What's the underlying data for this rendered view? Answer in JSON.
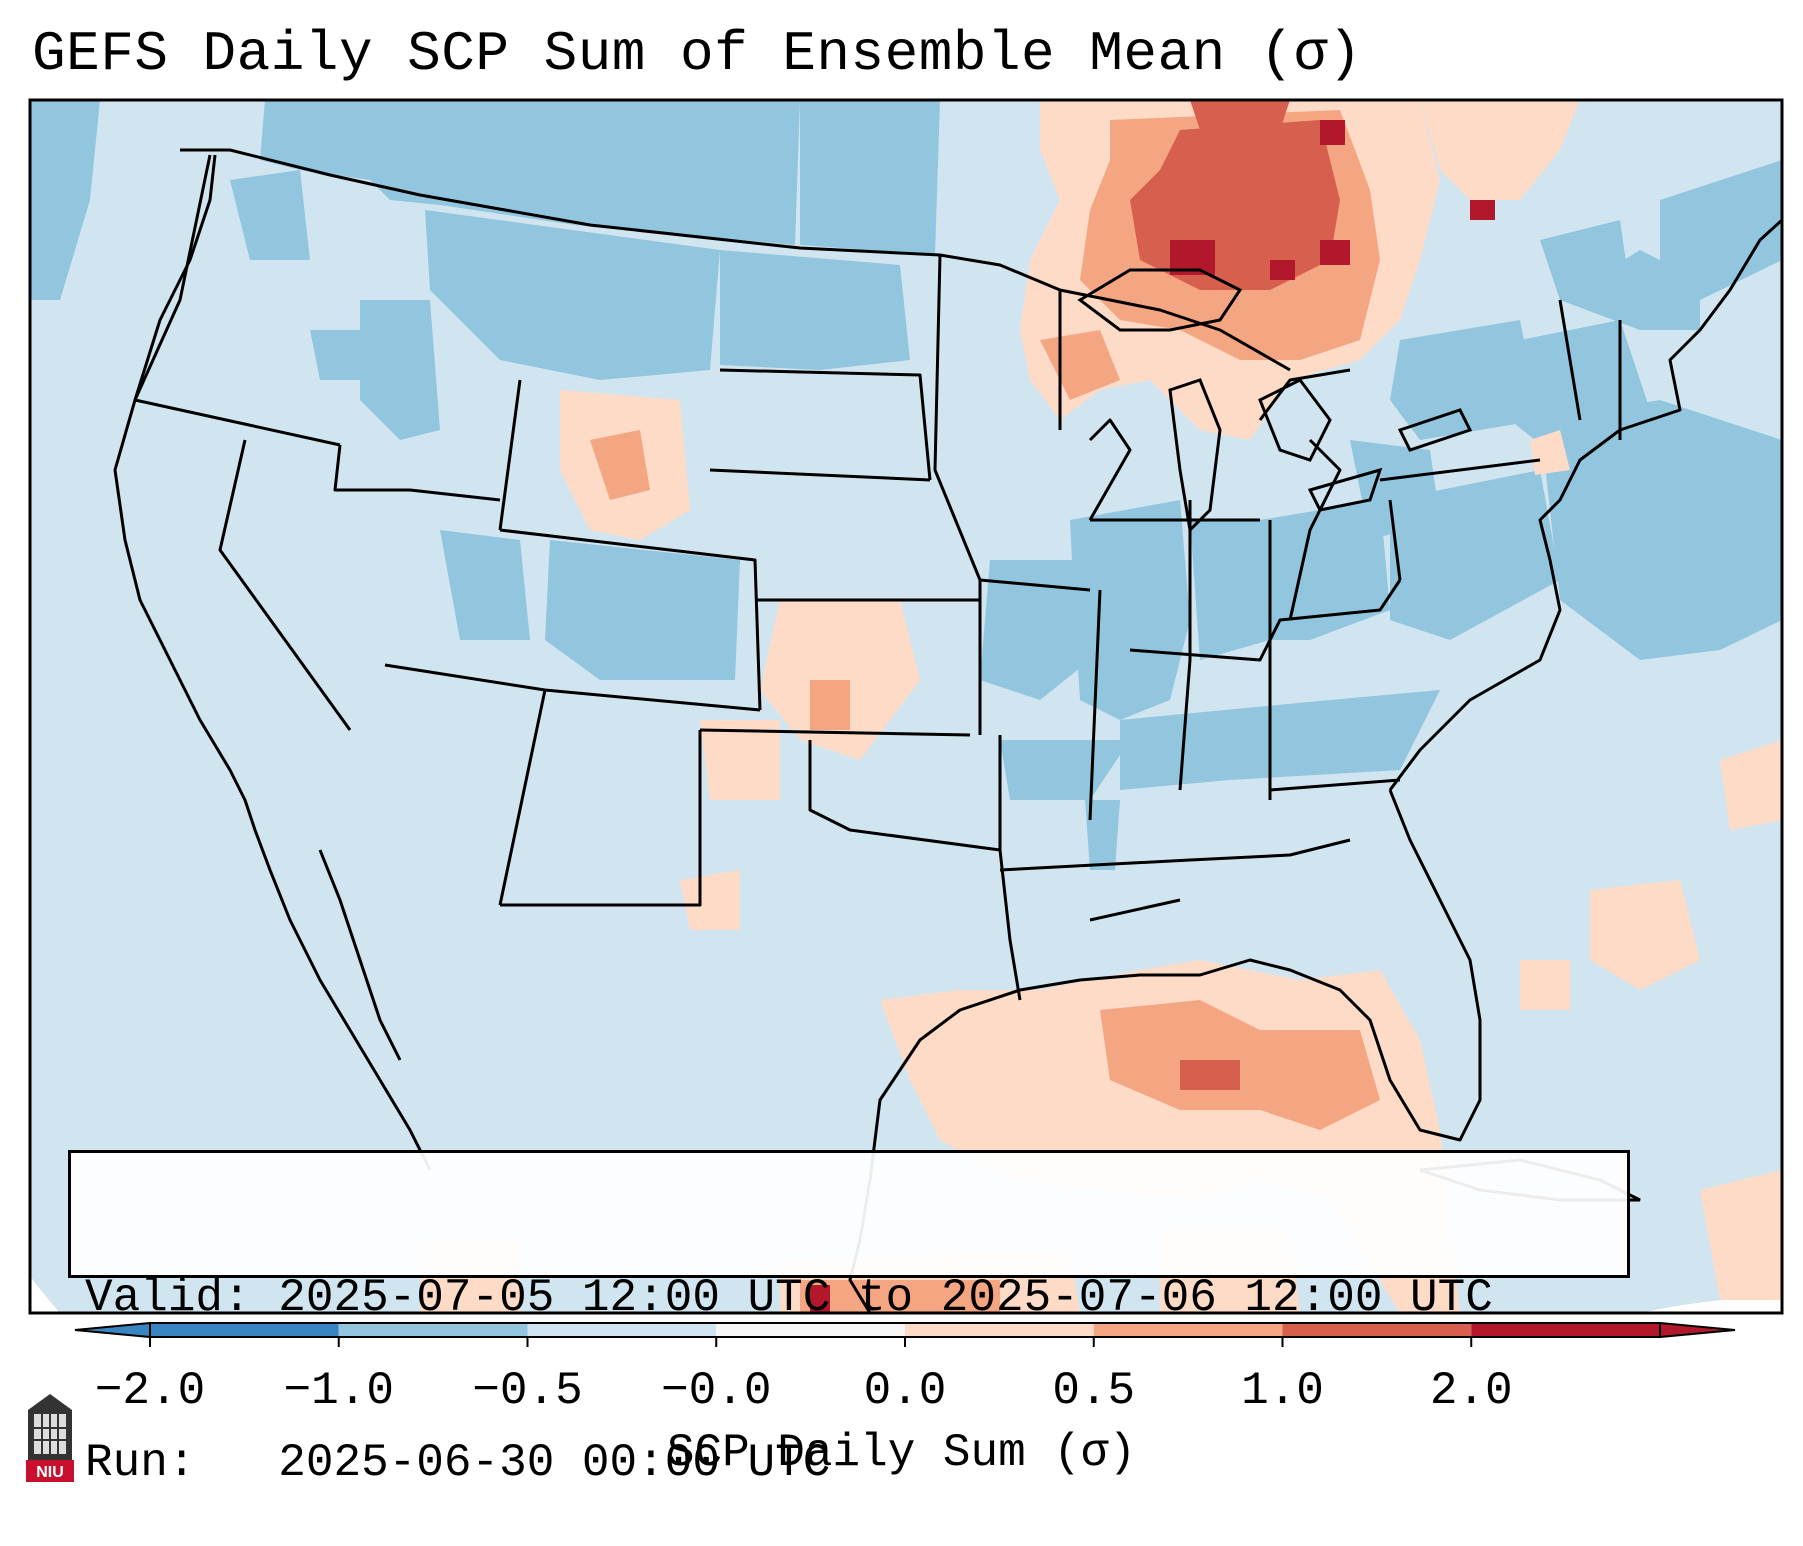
{
  "title": "GEFS Daily SCP Sum of Ensemble Mean (σ)",
  "info": {
    "valid_label": "Valid:",
    "valid_value": "2025-07-05 12:00 UTC to 2025-07-06 12:00 UTC",
    "run_label": "Run:",
    "run_value": "2025-06-30 00:00 UTC"
  },
  "colorbar": {
    "label": "SCP Daily Sum (σ)",
    "ticks": [
      "−2.0",
      "−1.0",
      "−0.5",
      "−0.0",
      "0.0",
      "0.5",
      "1.0",
      "2.0"
    ],
    "colors": [
      "#3a84c1",
      "#92c5de",
      "#d1e5f0",
      "#f7f7f7",
      "#fddbc7",
      "#f4a582",
      "#d6604d",
      "#b2182b"
    ]
  },
  "logo": {
    "text": "NIU"
  },
  "map": {
    "ocean_color": "#d1e5f0",
    "hotspots": [
      {
        "region": "Ontario / Upper Great Lakes",
        "sigma": 1.5
      },
      {
        "region": "Lake Superior",
        "sigma": 2.0
      },
      {
        "region": "Wyoming",
        "sigma": 0.5
      },
      {
        "region": "Kansas",
        "sigma": 0.5
      },
      {
        "region": "Gulf of Mexico",
        "sigma": 0.8
      }
    ]
  }
}
